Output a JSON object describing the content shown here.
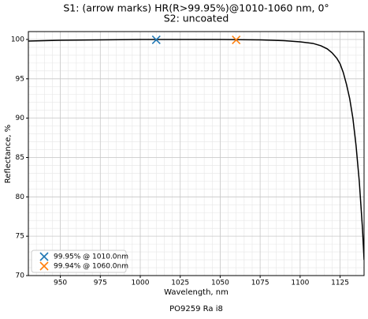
{
  "chart_data": {
    "type": "line",
    "title": "S1: (arrow marks) HR(R>99.95%)@1010-1060 nm, 0°",
    "subtitle": "S2: uncoated",
    "x_label": "Wavelength, nm",
    "y_label": "Reflectance, %",
    "footer": "PO9259 Ra i8",
    "x": [
      930,
      950,
      975,
      1000,
      1025,
      1050,
      1075,
      1090,
      1100,
      1108,
      1113,
      1117,
      1120,
      1123,
      1125,
      1127,
      1129,
      1131,
      1133,
      1135,
      1137,
      1139,
      1140
    ],
    "series": [
      {
        "name": "Reflectance",
        "color": "#000000",
        "values": [
          99.8,
          99.9,
          99.95,
          100,
          100,
          100,
          99.95,
          99.85,
          99.7,
          99.5,
          99.2,
          98.8,
          98.3,
          97.6,
          96.9,
          95.8,
          94.3,
          92.5,
          90,
          86.5,
          82,
          76,
          72
        ]
      }
    ],
    "markers": [
      {
        "name": "99.95% @ 1010.0nm",
        "color": "#1f77b4",
        "x": 1010,
        "value": 99.95
      },
      {
        "name": "99.94% @ 1060.0nm",
        "color": "#ff7f0e",
        "x": 1060,
        "value": 99.94
      }
    ],
    "xlim": [
      930,
      1140
    ],
    "ylim": [
      70,
      101
    ],
    "xticks": [
      950,
      975,
      1000,
      1025,
      1050,
      1075,
      1100,
      1125
    ],
    "yticks": [
      70,
      75,
      80,
      85,
      90,
      95,
      100
    ],
    "grid": true,
    "minor_grid": true,
    "legend": "lower-left"
  }
}
